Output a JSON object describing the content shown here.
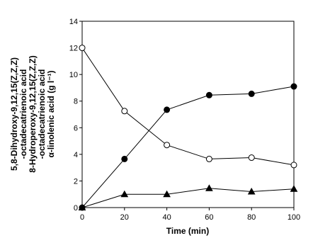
{
  "chart_data": {
    "type": "line",
    "x_label": "Time (min)",
    "y_label": [
      "5,8-Dihydroxy-9,12,15(Z,Z,Z)",
      "-octadecatrienoic acid",
      "8-Hydroperoxy-9,12,15(Z,Z,Z)",
      "-octadecatrienoic acid",
      "α-linolenic acid (g l⁻¹)"
    ],
    "x": [
      0,
      20,
      40,
      60,
      80,
      100
    ],
    "series": [
      {
        "color": "#000000",
        "marker": "circle-open",
        "values": [
          12,
          7.25,
          4.7,
          3.65,
          3.75,
          3.2
        ]
      },
      {
        "color": "#000000",
        "marker": "circle-filled",
        "values": [
          0,
          3.65,
          7.35,
          8.45,
          8.55,
          9.1
        ]
      },
      {
        "color": "#000000",
        "marker": "triangle",
        "values": [
          0,
          1.0,
          1.0,
          1.45,
          1.2,
          1.4
        ]
      }
    ],
    "xlim": [
      0,
      100
    ],
    "xticks": [
      0,
      20,
      40,
      60,
      80,
      100
    ],
    "ylim": [
      0,
      14
    ],
    "yticks": [
      0,
      2,
      4,
      6,
      8,
      10,
      12,
      14
    ]
  }
}
